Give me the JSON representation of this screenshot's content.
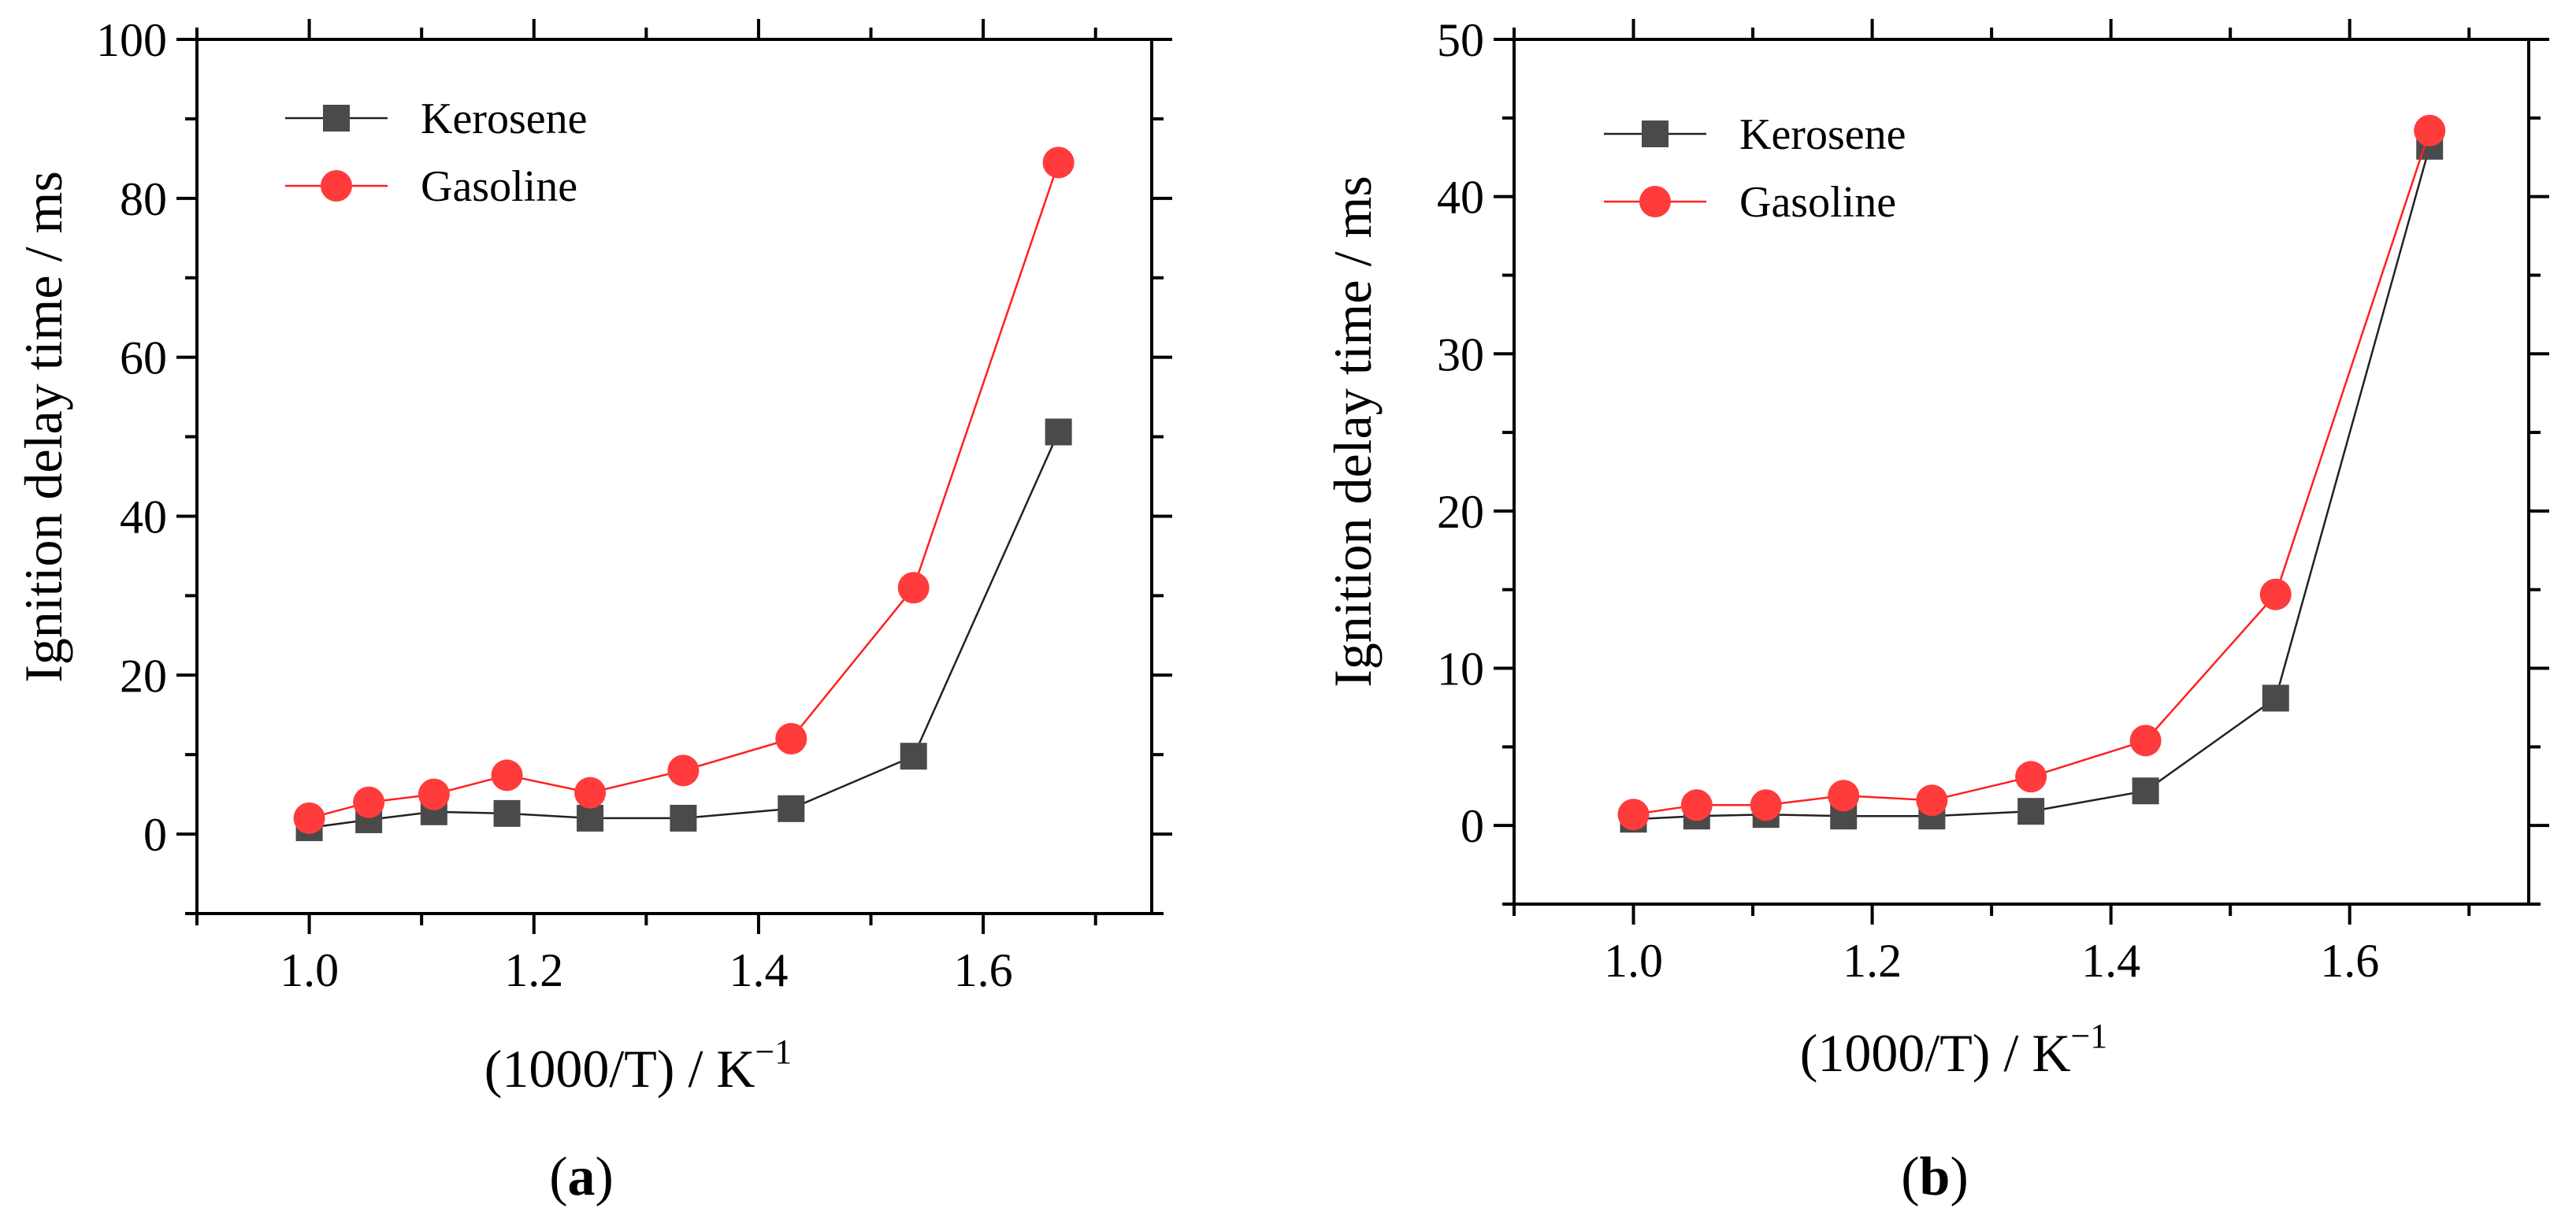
{
  "chart_data": [
    {
      "type": "line",
      "panel_label": "a",
      "xlabel": "(1000/T) / K",
      "xlabel_superscript": "−1",
      "ylabel": "Ignition delay time / ms",
      "xlim": [
        0.9,
        1.75
      ],
      "ylim": [
        -10,
        100
      ],
      "xticks": [
        1.0,
        1.2,
        1.4,
        1.6
      ],
      "xtick_labels": [
        "1.0",
        "1.2",
        "1.4",
        "1.6"
      ],
      "yticks": [
        0,
        20,
        40,
        60,
        80,
        100
      ],
      "ytick_labels": [
        "0",
        "20",
        "40",
        "60",
        "80",
        "100"
      ],
      "grid": false,
      "legend_position": "top-left",
      "x": [
        1.0,
        1.053,
        1.111,
        1.176,
        1.25,
        1.333,
        1.429,
        1.538,
        1.667
      ],
      "series": [
        {
          "name": "Kerosene",
          "color": "#4a4a4a",
          "line_color": "#222222",
          "marker": "square",
          "values": [
            0.8,
            1.8,
            2.8,
            2.6,
            2.0,
            2.0,
            3.2,
            9.8,
            50.6
          ]
        },
        {
          "name": "Gasoline",
          "color": "#ff3b3b",
          "line_color": "#ff2020",
          "marker": "circle",
          "values": [
            2.0,
            4.0,
            5.0,
            7.4,
            5.2,
            8.0,
            12.0,
            31.0,
            84.5
          ]
        }
      ]
    },
    {
      "type": "line",
      "panel_label": "b",
      "xlabel": "(1000/T) / K",
      "xlabel_superscript": "−1",
      "ylabel": "Ignition delay time / ms",
      "xlim": [
        0.9,
        1.75
      ],
      "ylim": [
        -5,
        50
      ],
      "xticks": [
        1.0,
        1.2,
        1.4,
        1.6
      ],
      "xtick_labels": [
        "1.0",
        "1.2",
        "1.4",
        "1.6"
      ],
      "yticks": [
        0,
        10,
        20,
        30,
        40,
        50
      ],
      "ytick_labels": [
        "0",
        "10",
        "20",
        "30",
        "40",
        "50"
      ],
      "grid": false,
      "legend_position": "top-left",
      "x": [
        1.0,
        1.053,
        1.111,
        1.176,
        1.25,
        1.333,
        1.429,
        1.538,
        1.667
      ],
      "series": [
        {
          "name": "Kerosene",
          "color": "#4a4a4a",
          "line_color": "#222222",
          "marker": "square",
          "values": [
            0.4,
            0.6,
            0.7,
            0.6,
            0.6,
            0.9,
            2.2,
            8.1,
            43.2
          ]
        },
        {
          "name": "Gasoline",
          "color": "#ff3b3b",
          "line_color": "#ff2020",
          "marker": "circle",
          "values": [
            0.7,
            1.3,
            1.3,
            1.9,
            1.6,
            3.1,
            5.4,
            14.7,
            44.2
          ]
        }
      ]
    }
  ]
}
